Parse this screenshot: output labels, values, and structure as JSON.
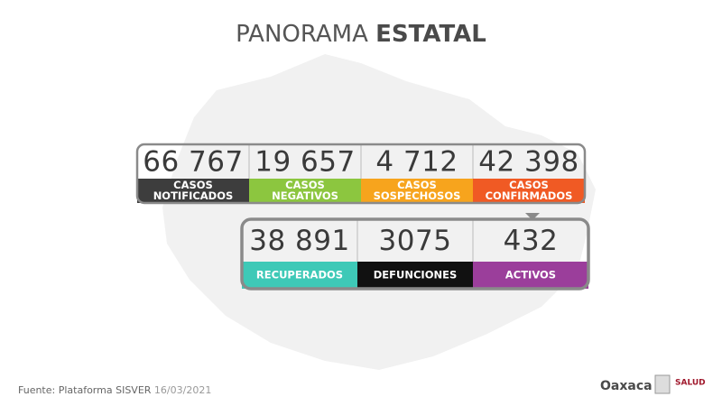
{
  "title": {
    "light": "PANORAMA",
    "bold": "ESTATAL"
  },
  "row1": [
    {
      "number": "66 767",
      "label": [
        "CASOS",
        "NOTIFICADOS"
      ],
      "color": "#3d3d3d"
    },
    {
      "number": "19 657",
      "label": [
        "CASOS",
        "NEGATIVOS"
      ],
      "color": "#8cc63f"
    },
    {
      "number": "4 712",
      "label": [
        "CASOS",
        "SOSPECHOSOS"
      ],
      "color": "#f7a41d"
    },
    {
      "number": "42 398",
      "label": [
        "CASOS",
        "CONFIRMADOS"
      ],
      "color": "#f05a24"
    }
  ],
  "row2": [
    {
      "number": "38 891",
      "label": [
        "RECUPERADOS"
      ],
      "color": "#3ec9b7"
    },
    {
      "number": "3075",
      "label": [
        "DEFUNCIONES"
      ],
      "color": "#111111"
    },
    {
      "number": "432",
      "label": [
        "ACTIVOS"
      ],
      "color": "#9b3e9b"
    }
  ],
  "footer": {
    "source": "Fuente: Plataforma SISVER",
    "date": "16/03/2021"
  },
  "logos": {
    "state": "Oaxaca",
    "health": "SALUD"
  }
}
